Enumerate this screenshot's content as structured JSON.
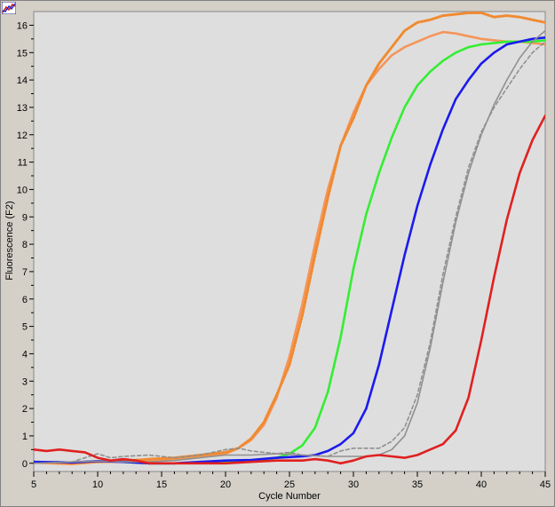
{
  "chart_data": {
    "type": "line",
    "title": "",
    "xlabel": "Cycle Number",
    "ylabel": "Fluorescence (F2)",
    "xlim": [
      5,
      45
    ],
    "ylim": [
      -0.3,
      16.5
    ],
    "x_ticks": [
      5,
      10,
      15,
      20,
      25,
      30,
      35,
      40,
      45
    ],
    "y_ticks": [
      0,
      1,
      2,
      3,
      4,
      5,
      6,
      7,
      8,
      9,
      10,
      11,
      12,
      13,
      14,
      15,
      16
    ],
    "grid": false,
    "series": [
      {
        "color": "#f5955a",
        "style": "solid",
        "points": [
          [
            5,
            0.02
          ],
          [
            8,
            -0.03
          ],
          [
            10,
            0.05
          ],
          [
            12,
            0.05
          ],
          [
            14,
            0.1
          ],
          [
            16,
            0.15
          ],
          [
            18,
            0.25
          ],
          [
            20,
            0.35
          ],
          [
            21,
            0.55
          ],
          [
            22,
            0.85
          ],
          [
            23,
            1.4
          ],
          [
            24,
            2.4
          ],
          [
            25,
            3.9
          ],
          [
            26,
            5.8
          ],
          [
            27,
            8.0
          ],
          [
            28,
            10.0
          ],
          [
            29,
            11.6
          ],
          [
            30,
            12.8
          ],
          [
            31,
            13.8
          ],
          [
            32,
            14.4
          ],
          [
            33,
            14.9
          ],
          [
            34,
            15.2
          ],
          [
            35,
            15.4
          ],
          [
            36,
            15.6
          ],
          [
            37,
            15.75
          ],
          [
            38,
            15.7
          ],
          [
            39,
            15.6
          ],
          [
            40,
            15.5
          ],
          [
            41,
            15.45
          ],
          [
            42,
            15.4
          ],
          [
            43,
            15.4
          ],
          [
            44,
            15.35
          ],
          [
            45,
            15.3
          ]
        ]
      },
      {
        "color": "#f08a30",
        "style": "dotted",
        "points": [
          [
            5,
            0.05
          ],
          [
            8,
            0.0
          ],
          [
            10,
            0.05
          ],
          [
            12,
            0.08
          ],
          [
            14,
            0.15
          ],
          [
            16,
            0.2
          ],
          [
            18,
            0.3
          ],
          [
            20,
            0.4
          ],
          [
            21,
            0.55
          ],
          [
            22,
            0.9
          ],
          [
            23,
            1.5
          ],
          [
            24,
            2.5
          ],
          [
            25,
            3.6
          ],
          [
            26,
            5.4
          ],
          [
            27,
            7.6
          ],
          [
            28,
            9.7
          ],
          [
            29,
            11.6
          ],
          [
            30,
            12.6
          ],
          [
            31,
            13.8
          ],
          [
            32,
            14.6
          ],
          [
            33,
            15.2
          ],
          [
            34,
            15.8
          ],
          [
            35,
            16.1
          ],
          [
            36,
            16.2
          ],
          [
            37,
            16.35
          ],
          [
            38,
            16.4
          ],
          [
            39,
            16.45
          ],
          [
            40,
            16.45
          ],
          [
            41,
            16.3
          ],
          [
            42,
            16.35
          ],
          [
            43,
            16.3
          ],
          [
            44,
            16.2
          ],
          [
            45,
            16.1
          ]
        ]
      },
      {
        "color": "#33ee33",
        "style": "solid",
        "points": [
          [
            12,
            0.05
          ],
          [
            14,
            0.0
          ],
          [
            16,
            0.0
          ],
          [
            18,
            0.02
          ],
          [
            20,
            0.05
          ],
          [
            22,
            0.1
          ],
          [
            24,
            0.2
          ],
          [
            25,
            0.35
          ],
          [
            26,
            0.65
          ],
          [
            27,
            1.3
          ],
          [
            28,
            2.6
          ],
          [
            29,
            4.6
          ],
          [
            30,
            7.1
          ],
          [
            31,
            9.1
          ],
          [
            32,
            10.6
          ],
          [
            33,
            11.9
          ],
          [
            34,
            13.0
          ],
          [
            35,
            13.8
          ],
          [
            36,
            14.3
          ],
          [
            37,
            14.7
          ],
          [
            38,
            15.0
          ],
          [
            39,
            15.2
          ],
          [
            40,
            15.3
          ],
          [
            41,
            15.35
          ],
          [
            42,
            15.4
          ],
          [
            43,
            15.4
          ],
          [
            44,
            15.4
          ],
          [
            45,
            15.45
          ]
        ]
      },
      {
        "color": "#1a1aee",
        "style": "solid",
        "points": [
          [
            5,
            0.05
          ],
          [
            8,
            0.03
          ],
          [
            10,
            0.08
          ],
          [
            12,
            0.05
          ],
          [
            14,
            0.0
          ],
          [
            16,
            0.0
          ],
          [
            18,
            0.05
          ],
          [
            20,
            0.1
          ],
          [
            22,
            0.12
          ],
          [
            24,
            0.2
          ],
          [
            26,
            0.25
          ],
          [
            27,
            0.3
          ],
          [
            28,
            0.45
          ],
          [
            29,
            0.7
          ],
          [
            30,
            1.1
          ],
          [
            31,
            2.0
          ],
          [
            32,
            3.6
          ],
          [
            33,
            5.6
          ],
          [
            34,
            7.6
          ],
          [
            35,
            9.4
          ],
          [
            36,
            10.9
          ],
          [
            37,
            12.2
          ],
          [
            38,
            13.3
          ],
          [
            39,
            14.0
          ],
          [
            40,
            14.6
          ],
          [
            41,
            15.0
          ],
          [
            42,
            15.3
          ],
          [
            43,
            15.4
          ],
          [
            44,
            15.5
          ],
          [
            45,
            15.55
          ]
        ]
      },
      {
        "color": "#909090",
        "style": "solid",
        "points": [
          [
            5,
            0.0
          ],
          [
            8,
            0.05
          ],
          [
            10,
            0.08
          ],
          [
            12,
            0.05
          ],
          [
            14,
            0.05
          ],
          [
            16,
            0.1
          ],
          [
            18,
            0.2
          ],
          [
            20,
            0.3
          ],
          [
            22,
            0.3
          ],
          [
            24,
            0.35
          ],
          [
            26,
            0.3
          ],
          [
            28,
            0.25
          ],
          [
            30,
            0.25
          ],
          [
            31,
            0.25
          ],
          [
            32,
            0.3
          ],
          [
            33,
            0.5
          ],
          [
            34,
            1.0
          ],
          [
            35,
            2.2
          ],
          [
            36,
            4.2
          ],
          [
            37,
            6.6
          ],
          [
            38,
            8.8
          ],
          [
            39,
            10.6
          ],
          [
            40,
            12.0
          ],
          [
            41,
            13.1
          ],
          [
            42,
            14.0
          ],
          [
            43,
            14.8
          ],
          [
            44,
            15.4
          ],
          [
            45,
            15.8
          ]
        ]
      },
      {
        "color": "#909090",
        "style": "dashed",
        "points": [
          [
            5,
            0.0
          ],
          [
            8,
            0.05
          ],
          [
            10,
            0.35
          ],
          [
            11,
            0.2
          ],
          [
            12,
            0.25
          ],
          [
            14,
            0.3
          ],
          [
            15,
            0.25
          ],
          [
            16,
            0.2
          ],
          [
            18,
            0.3
          ],
          [
            20,
            0.5
          ],
          [
            21,
            0.55
          ],
          [
            22,
            0.45
          ],
          [
            24,
            0.35
          ],
          [
            25,
            0.4
          ],
          [
            26,
            0.3
          ],
          [
            28,
            0.25
          ],
          [
            29,
            0.45
          ],
          [
            30,
            0.55
          ],
          [
            32,
            0.55
          ],
          [
            33,
            0.8
          ],
          [
            34,
            1.3
          ],
          [
            35,
            2.5
          ],
          [
            36,
            4.4
          ],
          [
            37,
            6.9
          ],
          [
            38,
            9.0
          ],
          [
            39,
            10.8
          ],
          [
            40,
            12.1
          ],
          [
            41,
            13.0
          ],
          [
            42,
            13.7
          ],
          [
            43,
            14.4
          ],
          [
            44,
            15.0
          ],
          [
            45,
            15.4
          ]
        ]
      },
      {
        "color": "#e02020",
        "style": "solid",
        "points": [
          [
            5,
            0.5
          ],
          [
            6,
            0.45
          ],
          [
            7,
            0.5
          ],
          [
            8,
            0.45
          ],
          [
            9,
            0.4
          ],
          [
            10,
            0.2
          ],
          [
            11,
            0.1
          ],
          [
            12,
            0.15
          ],
          [
            13,
            0.1
          ],
          [
            14,
            0.0
          ],
          [
            16,
            0.0
          ],
          [
            18,
            0.0
          ],
          [
            20,
            0.0
          ],
          [
            22,
            0.05
          ],
          [
            24,
            0.1
          ],
          [
            26,
            0.1
          ],
          [
            27,
            0.15
          ],
          [
            28,
            0.1
          ],
          [
            29,
            0.0
          ],
          [
            30,
            0.1
          ],
          [
            31,
            0.25
          ],
          [
            32,
            0.3
          ],
          [
            33,
            0.25
          ],
          [
            34,
            0.2
          ],
          [
            35,
            0.3
          ],
          [
            36,
            0.5
          ],
          [
            37,
            0.7
          ],
          [
            38,
            1.2
          ],
          [
            39,
            2.4
          ],
          [
            40,
            4.5
          ],
          [
            41,
            6.8
          ],
          [
            42,
            8.9
          ],
          [
            43,
            10.6
          ],
          [
            44,
            11.8
          ],
          [
            45,
            12.7
          ]
        ]
      }
    ]
  }
}
